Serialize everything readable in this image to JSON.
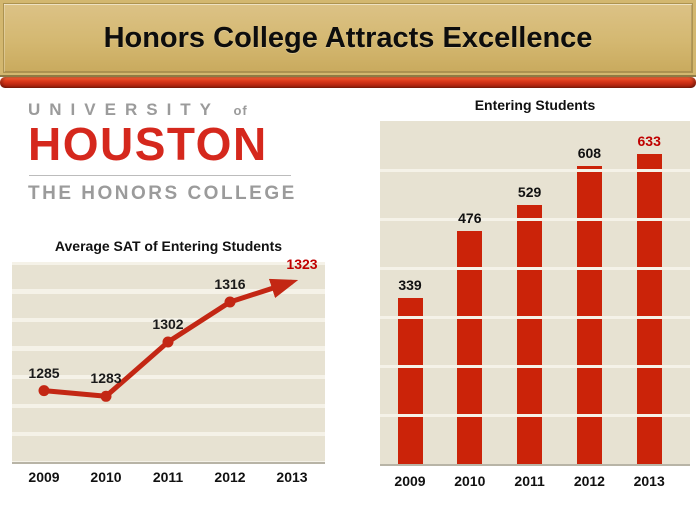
{
  "header": {
    "title": "Honors College Attracts Excellence"
  },
  "logo": {
    "line1": "UNIVERSITY",
    "line1_suffix": "of",
    "line2": "HOUSTON",
    "line3": "THE HONORS COLLEGE"
  },
  "colors": {
    "banner_tan": "#d3b76f",
    "banner_border_olive": "#8e7a44",
    "stripe_red_top": "#ef6a3c",
    "stripe_red_bottom": "#8c1d0c",
    "houston_red": "#d5281d",
    "logo_gray": "#9b9b9b",
    "line_red": "#c32714",
    "bar_red": "#cb2309",
    "data_label_red": "#c00000",
    "plot_bg_beige": "#e7e2d2",
    "gridline_cream": "#f5f2e8",
    "axis_gray": "#b8b4a6",
    "title_black": "#0d0d0d"
  },
  "chart_data": [
    {
      "type": "line",
      "title": "Average SAT of Entering Students",
      "categories": [
        "2009",
        "2010",
        "2011",
        "2012",
        "2013"
      ],
      "values": [
        1285,
        1283,
        1302,
        1316,
        1323
      ],
      "data_labels": [
        "1285",
        "1283",
        "1302",
        "1316",
        "1323"
      ],
      "xlabel": "",
      "ylabel": "",
      "ylim": [
        1260,
        1330
      ],
      "grid_interval": 10,
      "grid": "horizontal-bands",
      "legend": "none",
      "marker": "circle",
      "last_point_style": "arrowhead",
      "last_label_color": "#c00000"
    },
    {
      "type": "bar",
      "title": "Entering Students",
      "categories": [
        "2009",
        "2010",
        "2011",
        "2012",
        "2013"
      ],
      "values": [
        339,
        476,
        529,
        608,
        633
      ],
      "data_labels": [
        "339",
        "476",
        "529",
        "608",
        "633"
      ],
      "xlabel": "",
      "ylabel": "",
      "ylim": [
        0,
        700
      ],
      "grid_interval": 100,
      "grid": "horizontal-lines-over-bars",
      "legend": "none",
      "last_label_color": "#c00000"
    }
  ]
}
